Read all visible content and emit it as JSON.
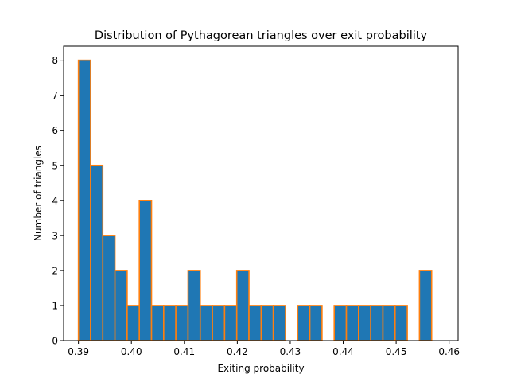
{
  "chart_data": {
    "type": "bar",
    "title": "Distribution of Pythagorean triangles over exit probability",
    "xlabel": "Exiting probability",
    "ylabel": "Number of triangles",
    "xlim": [
      0.3872,
      0.4617
    ],
    "ylim": [
      0,
      8.4
    ],
    "xticks": [
      0.39,
      0.4,
      0.41,
      0.42,
      0.43,
      0.44,
      0.45,
      0.46
    ],
    "xtick_labels": [
      "0.39",
      "0.40",
      "0.41",
      "0.42",
      "0.43",
      "0.44",
      "0.45",
      "0.46"
    ],
    "yticks": [
      0,
      1,
      2,
      3,
      4,
      5,
      6,
      7,
      8
    ],
    "ytick_labels": [
      "0",
      "1",
      "2",
      "3",
      "4",
      "5",
      "6",
      "7",
      "8"
    ],
    "bin_start": 0.39,
    "bin_width": 0.0023,
    "values": [
      8,
      5,
      3,
      2,
      1,
      4,
      1,
      1,
      1,
      2,
      1,
      1,
      1,
      2,
      1,
      1,
      1,
      0,
      1,
      1,
      0,
      1,
      1,
      1,
      1,
      1,
      1,
      0,
      2
    ],
    "bar_color": "#1f77b4",
    "edge_color": "#ff7f0e",
    "grid": false
  }
}
